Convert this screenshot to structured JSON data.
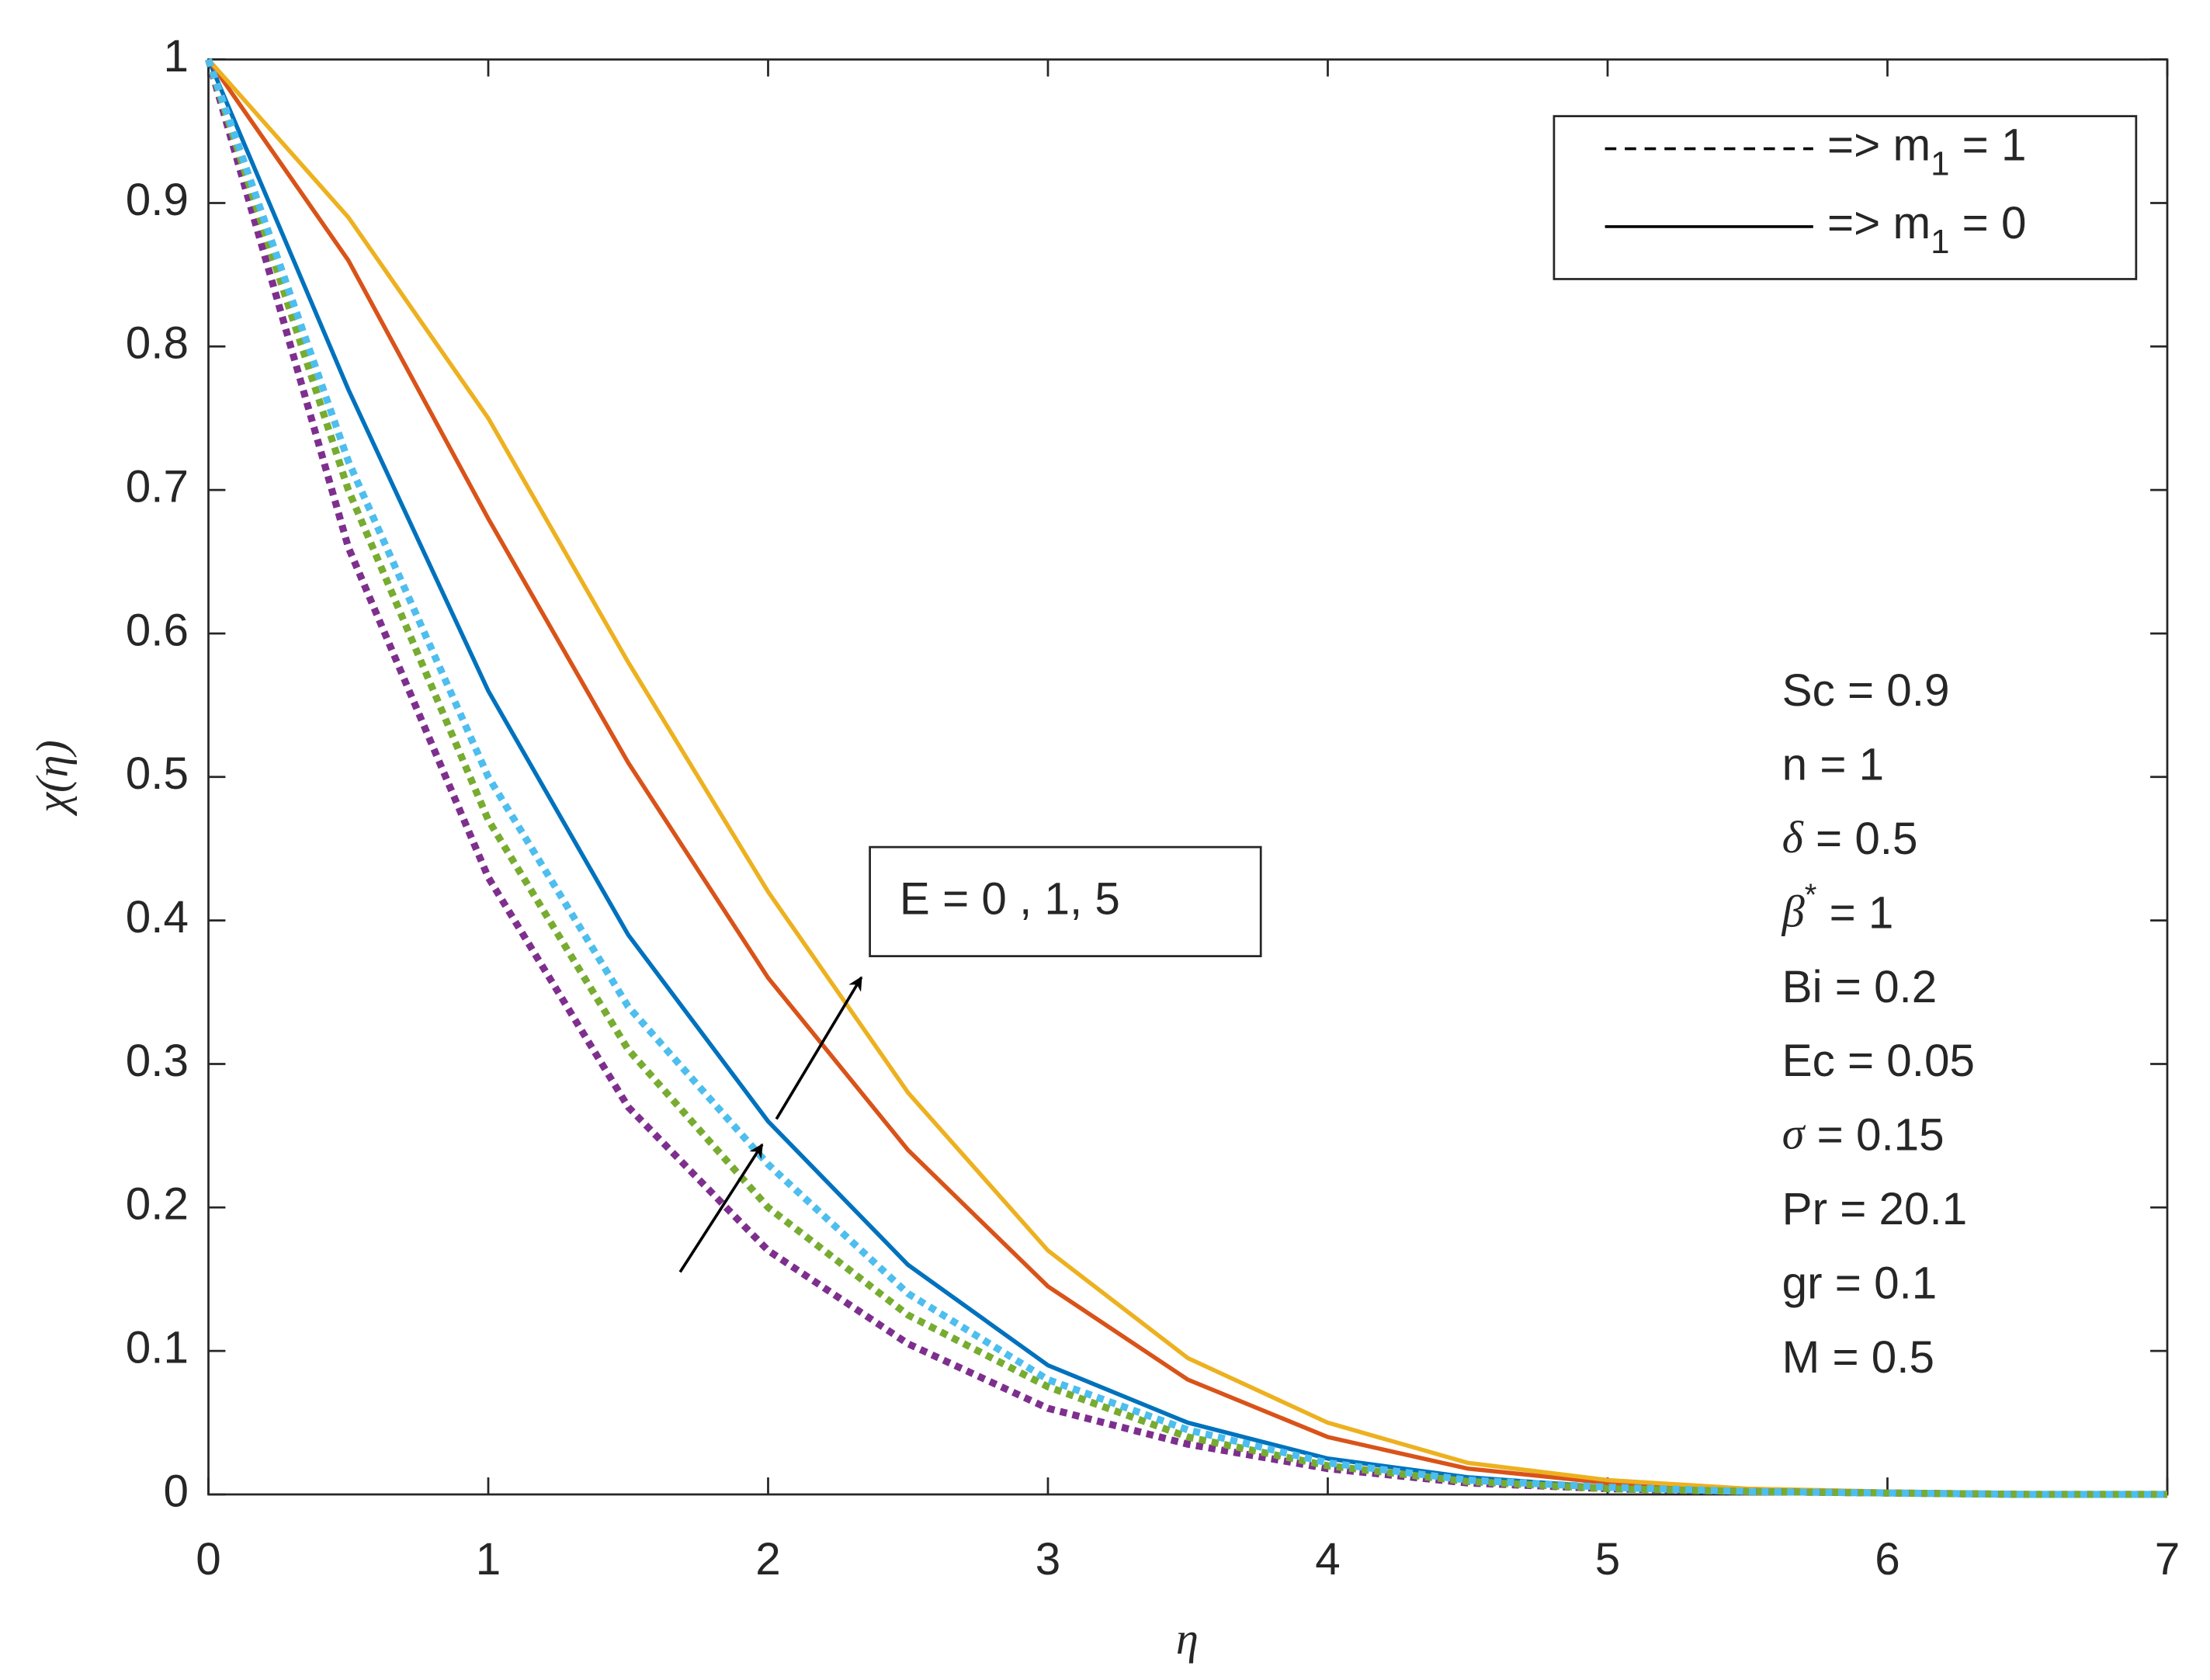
{
  "chart_data": {
    "type": "line",
    "x_label": "η",
    "y_label": "χ(η)",
    "x": [
      0,
      0.5,
      1,
      1.5,
      2,
      2.5,
      3,
      3.5,
      4,
      4.5,
      5,
      5.5,
      6,
      6.5,
      7
    ],
    "series": [
      {
        "color": "#0072bd",
        "dashed": false,
        "values": [
          1,
          0.77,
          0.56,
          0.39,
          0.26,
          0.16,
          0.09,
          0.05,
          0.025,
          0.012,
          0.005,
          0.002,
          0.001,
          0,
          0
        ]
      },
      {
        "color": "#d95319",
        "dashed": false,
        "values": [
          1,
          0.86,
          0.68,
          0.51,
          0.36,
          0.24,
          0.145,
          0.08,
          0.04,
          0.018,
          0.008,
          0.003,
          0.001,
          0.0005,
          0
        ]
      },
      {
        "color": "#edb120",
        "dashed": false,
        "values": [
          1,
          0.89,
          0.75,
          0.58,
          0.42,
          0.28,
          0.17,
          0.095,
          0.05,
          0.022,
          0.01,
          0.004,
          0.002,
          0.001,
          0
        ]
      },
      {
        "color": "#7e2f8e",
        "dashed": true,
        "values": [
          1,
          0.66,
          0.43,
          0.27,
          0.17,
          0.105,
          0.06,
          0.035,
          0.018,
          0.008,
          0.004,
          0.002,
          0.001,
          0,
          0
        ]
      },
      {
        "color": "#77ac30",
        "dashed": true,
        "values": [
          1,
          0.7,
          0.47,
          0.31,
          0.2,
          0.125,
          0.075,
          0.04,
          0.02,
          0.009,
          0.004,
          0.002,
          0.001,
          0,
          0
        ]
      },
      {
        "color": "#4dbeee",
        "dashed": true,
        "values": [
          1,
          0.72,
          0.5,
          0.34,
          0.23,
          0.14,
          0.08,
          0.045,
          0.022,
          0.01,
          0.005,
          0.002,
          0.001,
          0,
          0
        ]
      }
    ],
    "xlim": [
      0,
      7
    ],
    "ylim": [
      0,
      1
    ],
    "xticks": [
      0,
      1,
      2,
      3,
      4,
      5,
      6,
      7
    ],
    "yticks": [
      0,
      0.1,
      0.2,
      0.3,
      0.4,
      0.5,
      0.6,
      0.7,
      0.8,
      0.9,
      1
    ],
    "legend": [
      {
        "dashed": true,
        "text": "=> m",
        "sub": "1",
        "rest": " = 1"
      },
      {
        "dashed": false,
        "text": "=> m",
        "sub": "1",
        "rest": " = 0"
      }
    ],
    "annotation": "E = 0 , 1, 5",
    "parameters": [
      {
        "text": "Sc = 0.9"
      },
      {
        "text": "n = 1"
      },
      {
        "greek": "δ",
        "rest": " = 0.5"
      },
      {
        "greek": "β",
        "sup": "*",
        "rest": " = 1"
      },
      {
        "text": "Bi = 0.2"
      },
      {
        "text": "Ec = 0.05"
      },
      {
        "greek": "σ",
        "rest": " = 0.15"
      },
      {
        "text": "Pr = 20.1"
      },
      {
        "text": "gr = 0.1"
      },
      {
        "text": "M = 0.5"
      }
    ]
  }
}
